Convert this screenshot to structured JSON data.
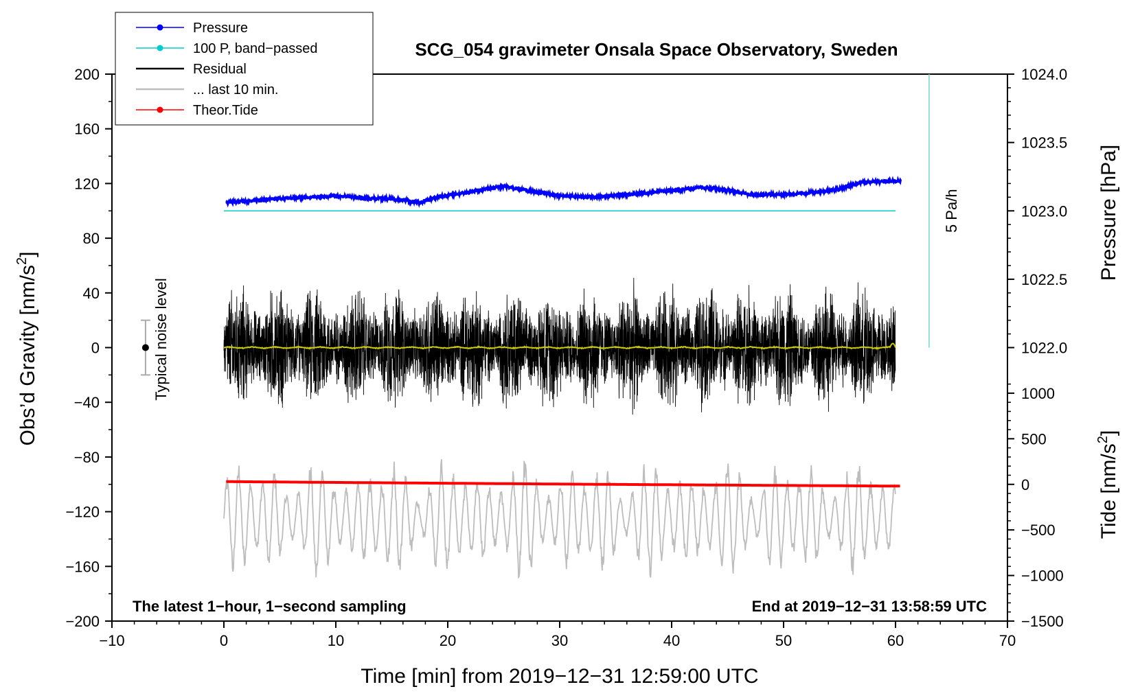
{
  "chart_data": {
    "type": "line",
    "title": "SCG_054 gravimeter Onsala Space Observatory, Sweden",
    "xlabel": "Time [min] from 2019−12−31 12:59:00 UTC",
    "ylabel_left": "Obs’d Gravity [nm/s",
    "ylabel_left_sup": "2",
    "ylabel_left_close": "]",
    "ylabel_right_top": "Pressure [hPa]",
    "ylabel_right_bottom": "Tide [nm/s",
    "ylabel_right_bottom_sup": "2",
    "ylabel_right_bottom_close": "]",
    "xlim": [
      -10,
      70
    ],
    "ylim_left": [
      -200,
      200
    ],
    "x_ticks": [
      "−10",
      "0",
      "10",
      "20",
      "30",
      "40",
      "50",
      "60",
      "70"
    ],
    "x_tick_values": [
      -10,
      0,
      10,
      20,
      30,
      40,
      50,
      60,
      70
    ],
    "y_ticks_left": [
      "200",
      "160",
      "120",
      "80",
      "40",
      "0",
      "−40",
      "−80",
      "−120",
      "−160",
      "−200"
    ],
    "y_tick_values_left": [
      200,
      160,
      120,
      80,
      40,
      0,
      -40,
      -80,
      -120,
      -160,
      -200
    ],
    "pressure_axis": {
      "ticks": [
        "1024.0",
        "1023.5",
        "1023.0",
        "1022.5",
        "1022.0"
      ],
      "values": [
        1024.0,
        1023.5,
        1023.0,
        1022.5,
        1022.0
      ],
      "map_left_at_1023": 100,
      "left_units_per_hPa": 100
    },
    "tide_axis": {
      "ticks": [
        "1000",
        "500",
        "0",
        "−500",
        "−1000",
        "−1500"
      ],
      "values": [
        1000,
        500,
        0,
        -500,
        -1000,
        -1500
      ],
      "map_left_at_0": -100,
      "left_units_per_nms2": 0.0666667
    },
    "series": [
      {
        "name": "Pressure",
        "color": "#0000ff",
        "x": [
          0.2,
          2,
          5,
          8,
          10,
          13,
          15,
          17.5,
          19,
          22,
          25,
          27,
          30,
          33,
          36,
          40,
          43,
          45,
          47,
          50,
          52,
          55,
          57,
          60.5
        ],
        "y": [
          106,
          107,
          109,
          110,
          111,
          109,
          109,
          106,
          110,
          114,
          118,
          115,
          111,
          110,
          112,
          115,
          117,
          115,
          112,
          112,
          113,
          116,
          121,
          122
        ]
      },
      {
        "name": "100 P, band−passed",
        "color": "#00cccc",
        "x": [
          0,
          60
        ],
        "y": [
          100,
          100
        ]
      },
      {
        "name": "Residual",
        "color": "#000000",
        "x": [
          0,
          60
        ],
        "envelope": 30
      },
      {
        "name": "... last 10 min.",
        "color": "#bdbdbd",
        "x": [
          0,
          60
        ],
        "center": -125,
        "amplitude": 30
      },
      {
        "name": "Theor.Tide",
        "color": "#ff0000",
        "x": [
          0.2,
          10,
          20,
          30,
          40,
          50,
          60.5
        ],
        "y": [
          -98,
          -98.6,
          -99.2,
          -99.8,
          -100.3,
          -100.8,
          -101.3
        ]
      },
      {
        "name": "Residual smoothed",
        "color": "#cccc00",
        "x": [
          0,
          60
        ],
        "y": [
          0,
          0
        ]
      }
    ],
    "legend": [
      {
        "label": "Pressure",
        "color": "#0000ff",
        "marker": true
      },
      {
        "label": "100 P, band−passed",
        "color": "#00cccc",
        "marker": true
      },
      {
        "label": "Residual",
        "color": "#000000",
        "marker": false
      },
      {
        "label": "... last 10 min.",
        "color": "#bdbdbd",
        "marker": false
      },
      {
        "label": "Theor.Tide",
        "color": "#ff0000",
        "marker": true
      }
    ],
    "legend_position": "top-left",
    "annotations": {
      "noise": "Typical noise level",
      "noise_center": 0,
      "noise_halfwidth": 20,
      "noise_x": -7,
      "rate_label": "5 Pa/h",
      "rate_x": 63,
      "rate_y_top": 200,
      "rate_y_bottom": 0,
      "bottom_left": "The latest 1−hour, 1−second sampling",
      "bottom_right": "End at 2019−12−31 13:58:59 UTC"
    }
  }
}
